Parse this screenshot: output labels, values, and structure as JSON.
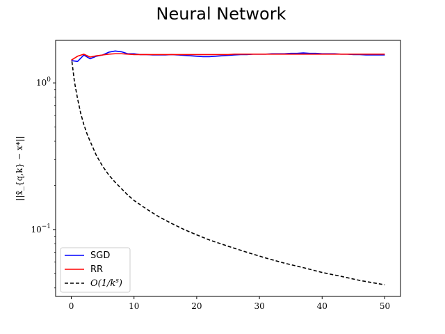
{
  "chart_data": {
    "type": "line",
    "title": "Neural Network",
    "xlabel": "",
    "ylabel": "||x̄_{q,k} − x*||",
    "yscale": "log",
    "xlim": [
      -2.5,
      52.5
    ],
    "ylim": [
      0.035,
      1.95
    ],
    "xticks": [
      0,
      10,
      20,
      30,
      40,
      50
    ],
    "yticks": [
      {
        "value": 1.0,
        "base": "10",
        "exp": "0"
      },
      {
        "value": 0.1,
        "base": "10",
        "exp": "−1"
      }
    ],
    "legend_position": "lower-left",
    "grid": false,
    "series": [
      {
        "name": "SGD",
        "color": "#0000ff",
        "dash": "solid",
        "x": [
          0,
          1,
          2,
          3,
          4,
          5,
          6,
          7,
          8,
          9,
          10,
          11,
          12,
          13,
          14,
          15,
          16,
          17,
          18,
          19,
          20,
          21,
          22,
          23,
          24,
          25,
          26,
          27,
          28,
          29,
          30,
          31,
          32,
          33,
          34,
          35,
          36,
          37,
          38,
          39,
          40,
          41,
          42,
          43,
          44,
          45,
          46,
          47,
          48,
          49,
          50
        ],
        "y": [
          1.42,
          1.4,
          1.55,
          1.46,
          1.52,
          1.55,
          1.62,
          1.65,
          1.63,
          1.58,
          1.58,
          1.56,
          1.56,
          1.55,
          1.55,
          1.55,
          1.56,
          1.55,
          1.54,
          1.53,
          1.52,
          1.51,
          1.51,
          1.52,
          1.53,
          1.54,
          1.55,
          1.56,
          1.56,
          1.57,
          1.57,
          1.57,
          1.58,
          1.58,
          1.58,
          1.59,
          1.59,
          1.6,
          1.59,
          1.59,
          1.58,
          1.58,
          1.58,
          1.57,
          1.57,
          1.56,
          1.56,
          1.55,
          1.55,
          1.55,
          1.55
        ]
      },
      {
        "name": "RR",
        "color": "#ff0000",
        "dash": "solid",
        "x": [
          0,
          1,
          2,
          3,
          4,
          5,
          6,
          7,
          8,
          9,
          10,
          11,
          12,
          13,
          14,
          15,
          16,
          17,
          18,
          19,
          20,
          21,
          22,
          23,
          24,
          25,
          26,
          27,
          28,
          29,
          30,
          31,
          32,
          33,
          34,
          35,
          36,
          37,
          38,
          39,
          40,
          41,
          42,
          43,
          44,
          45,
          46,
          47,
          48,
          49,
          50
        ],
        "y": [
          1.43,
          1.52,
          1.57,
          1.5,
          1.53,
          1.55,
          1.57,
          1.58,
          1.58,
          1.57,
          1.56,
          1.56,
          1.56,
          1.56,
          1.56,
          1.56,
          1.56,
          1.56,
          1.56,
          1.56,
          1.56,
          1.56,
          1.56,
          1.56,
          1.56,
          1.56,
          1.57,
          1.57,
          1.57,
          1.57,
          1.57,
          1.57,
          1.57,
          1.57,
          1.57,
          1.57,
          1.57,
          1.57,
          1.57,
          1.57,
          1.57,
          1.57,
          1.57,
          1.57,
          1.57,
          1.57,
          1.57,
          1.57,
          1.57,
          1.57,
          1.57
        ]
      },
      {
        "name": "O(1/k^s)",
        "label_main": "O(1/k",
        "label_sup": "s",
        "label_end": ")",
        "color": "#000000",
        "dash": "dashed",
        "x": [
          0.1,
          0.5,
          1,
          1.5,
          2,
          2.5,
          3,
          4,
          5,
          6,
          7,
          8,
          9,
          10,
          12,
          14,
          16,
          18,
          20,
          22,
          25,
          28,
          31,
          34,
          37,
          40,
          43,
          46,
          50
        ],
        "y": [
          1.4,
          1.02,
          0.78,
          0.62,
          0.52,
          0.45,
          0.4,
          0.32,
          0.27,
          0.235,
          0.21,
          0.19,
          0.172,
          0.158,
          0.138,
          0.122,
          0.11,
          0.1,
          0.092,
          0.085,
          0.077,
          0.07,
          0.064,
          0.059,
          0.055,
          0.051,
          0.048,
          0.045,
          0.042
        ]
      }
    ]
  }
}
